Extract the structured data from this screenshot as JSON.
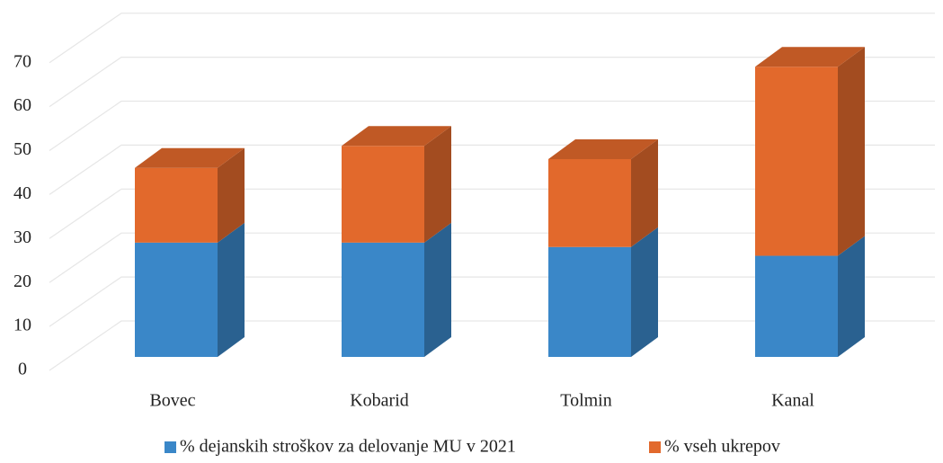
{
  "chart_data": {
    "type": "bar3d_stacked",
    "categories": [
      "Bovec",
      "Kobarid",
      "Tolmin",
      "Kanal"
    ],
    "series": [
      {
        "name": "% dejanskih stroškov za delovanje MU v 2021",
        "color": "#3a87c8",
        "values": [
          26,
          26,
          25,
          23
        ]
      },
      {
        "name": "% vseh ukrepov",
        "color": "#e2692c",
        "values": [
          17,
          22,
          20,
          43
        ]
      }
    ],
    "ylim": [
      0,
      80
    ],
    "yticks": [
      0,
      10,
      20,
      30,
      40,
      50,
      60,
      70
    ],
    "grid": true,
    "legend": "bottom"
  }
}
